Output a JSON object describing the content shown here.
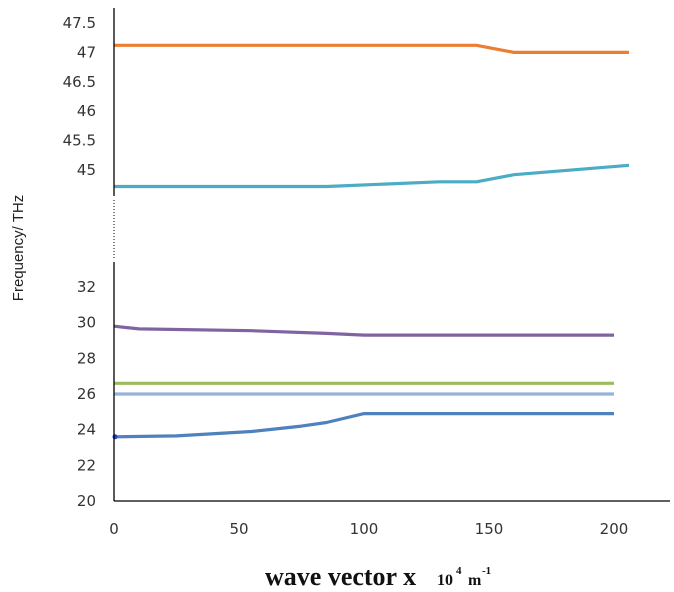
{
  "chart_data": {
    "type": "line",
    "xlabel": "wave vector x",
    "xlabel_unit_base": "10",
    "xlabel_unit_exp": "4",
    "xlabel_unit_m": "m",
    "xlabel_unit_m_exp": "-1",
    "ylabel": "Frequency/ THz",
    "x_ticks": [
      "0",
      "50",
      "100",
      "150",
      "200"
    ],
    "x_range": [
      0,
      225
    ],
    "y_axis_broken": true,
    "upper_panel": {
      "ylim": [
        44.3,
        47.7
      ],
      "y_ticks": [
        "47.5",
        "47",
        "46.5",
        "46",
        "45.5",
        "45"
      ],
      "series": [
        {
          "color": "#ED7D31",
          "x": [
            0,
            145,
            160,
            206
          ],
          "y": [
            47.12,
            47.12,
            47.0,
            47.0
          ]
        },
        {
          "color": "#4BACC6",
          "x": [
            0,
            85,
            130,
            145,
            160,
            206
          ],
          "y": [
            44.72,
            44.72,
            44.8,
            44.8,
            44.92,
            45.08
          ]
        }
      ]
    },
    "lower_panel": {
      "ylim": [
        20,
        33.3
      ],
      "y_ticks": [
        "32",
        "30",
        "28",
        "26",
        "24",
        "22",
        "20"
      ],
      "series": [
        {
          "color": "#8064A2",
          "x": [
            0,
            10,
            55,
            85,
            100,
            200
          ],
          "y": [
            29.8,
            29.65,
            29.55,
            29.4,
            29.3,
            29.3
          ]
        },
        {
          "color": "#9BBB59",
          "x": [
            0,
            200
          ],
          "y": [
            26.6,
            26.6
          ]
        },
        {
          "color": "#95B3D7",
          "x": [
            0,
            200
          ],
          "y": [
            26.0,
            26.0
          ]
        },
        {
          "color": "#4F81BD",
          "x": [
            0,
            25,
            55,
            75,
            85,
            100,
            200
          ],
          "y": [
            23.6,
            23.65,
            23.9,
            24.2,
            24.4,
            24.9,
            24.9
          ]
        }
      ]
    }
  }
}
